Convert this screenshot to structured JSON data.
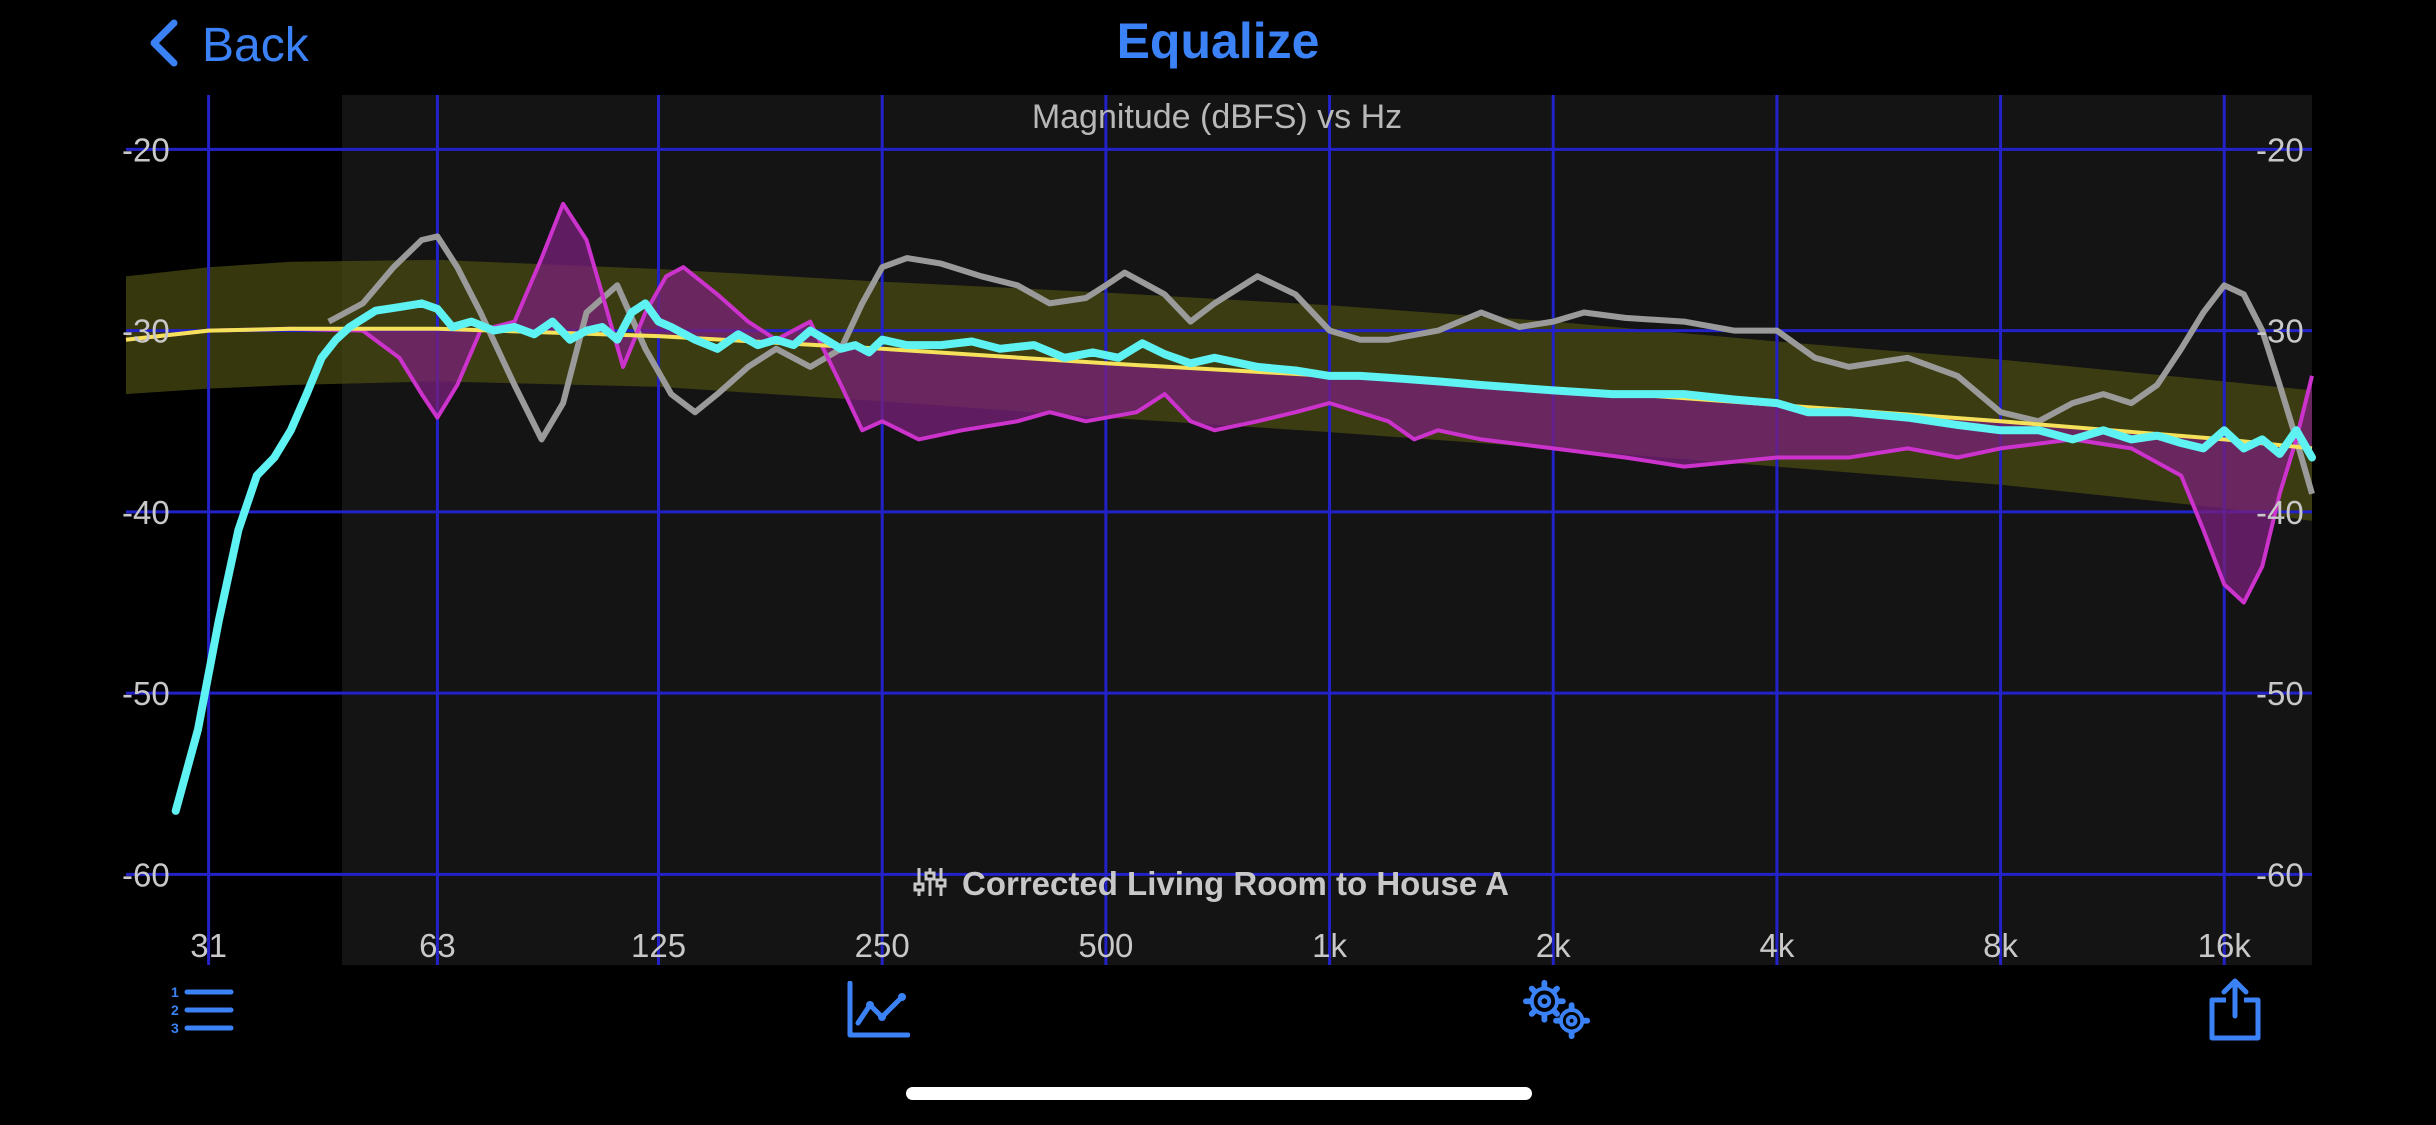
{
  "nav": {
    "back_label": "Back",
    "title": "Equalize"
  },
  "tabbar": {
    "items": [
      {
        "icon": "numbered-list-icon"
      },
      {
        "icon": "line-graph-icon"
      },
      {
        "icon": "gears-icon"
      },
      {
        "icon": "share-icon"
      }
    ],
    "accent": "#3b82f6"
  },
  "colors": {
    "accent": "#3b82f6",
    "grid": "#2222c8",
    "measured": "#9a9a9a",
    "eq": "#cc33cc",
    "predicted": "#5ef2f2",
    "target": "#f5e25a",
    "target_band": "#4a4a12"
  },
  "chart_data": {
    "type": "line",
    "title": "Magnitude (dBFS) vs Hz",
    "subtitle": "Corrected Living Room to House A",
    "x_scale": "log",
    "xlim": [
      24,
      21000
    ],
    "ylim": [
      -65,
      -17
    ],
    "x_ticks": [
      {
        "value": 31,
        "label": "31"
      },
      {
        "value": 63,
        "label": "63"
      },
      {
        "value": 125,
        "label": "125"
      },
      {
        "value": 250,
        "label": "250"
      },
      {
        "value": 500,
        "label": "500"
      },
      {
        "value": 1000,
        "label": "1k"
      },
      {
        "value": 2000,
        "label": "2k"
      },
      {
        "value": 4000,
        "label": "4k"
      },
      {
        "value": 8000,
        "label": "8k"
      },
      {
        "value": 16000,
        "label": "16k"
      }
    ],
    "y_ticks": [
      {
        "value": -20,
        "label": "-20"
      },
      {
        "value": -30,
        "label": "-30"
      },
      {
        "value": -40,
        "label": "-40"
      },
      {
        "value": -50,
        "label": "-50"
      },
      {
        "value": -60,
        "label": "-60"
      }
    ],
    "grid": true,
    "range_start_hz": 40,
    "target": {
      "x": [
        24,
        31,
        40,
        63,
        125,
        250,
        500,
        1000,
        2000,
        4000,
        8000,
        16000,
        21000
      ],
      "y": [
        -30.5,
        -30.0,
        -29.9,
        -29.9,
        -30.3,
        -31.0,
        -31.8,
        -32.5,
        -33.2,
        -34.1,
        -35.0,
        -36.0,
        -36.5
      ],
      "upper": [
        -27.0,
        -26.5,
        -26.2,
        -26.1,
        -26.6,
        -27.3,
        -27.9,
        -28.6,
        -29.5,
        -30.6,
        -31.6,
        -32.8,
        -33.3
      ],
      "lower": [
        -33.5,
        -33.2,
        -33.0,
        -32.8,
        -33.1,
        -33.9,
        -34.8,
        -35.6,
        -36.5,
        -37.5,
        -38.5,
        -39.8,
        -40.5
      ]
    },
    "series": [
      {
        "key": "measured",
        "x": [
          45,
          50,
          55,
          60,
          63,
          67,
          72,
          80,
          87,
          93,
          100,
          110,
          120,
          130,
          140,
          150,
          165,
          180,
          200,
          220,
          235,
          250,
          270,
          300,
          340,
          380,
          420,
          470,
          500,
          530,
          600,
          650,
          700,
          800,
          900,
          1000,
          1100,
          1200,
          1400,
          1600,
          1800,
          2000,
          2200,
          2500,
          3000,
          3500,
          4000,
          4500,
          5000,
          6000,
          7000,
          8000,
          9000,
          10000,
          11000,
          12000,
          13000,
          14000,
          15000,
          16000,
          17000,
          18000,
          19000,
          20000,
          21000
        ],
        "y": [
          -29.5,
          -28.5,
          -26.5,
          -25.0,
          -24.8,
          -26.5,
          -29.0,
          -33.0,
          -36.0,
          -34.0,
          -29.0,
          -27.5,
          -31.0,
          -33.5,
          -34.5,
          -33.5,
          -32.0,
          -31.0,
          -32.0,
          -31.0,
          -28.5,
          -26.5,
          -26.0,
          -26.3,
          -27.0,
          -27.5,
          -28.5,
          -28.2,
          -27.5,
          -26.8,
          -28.0,
          -29.5,
          -28.5,
          -27.0,
          -28.0,
          -30.0,
          -30.5,
          -30.5,
          -30.0,
          -29.0,
          -29.8,
          -29.5,
          -29.0,
          -29.3,
          -29.5,
          -30.0,
          -30.0,
          -31.5,
          -32.0,
          -31.5,
          -32.5,
          -34.5,
          -35.0,
          -34.0,
          -33.5,
          -34.0,
          -33.0,
          -31.0,
          -29.0,
          -27.5,
          -28.0,
          -30.0,
          -33.0,
          -36.0,
          -39.0
        ]
      },
      {
        "key": "eq",
        "x": [
          24,
          31,
          40,
          50,
          56,
          60,
          63,
          67,
          72,
          80,
          87,
          93,
          100,
          105,
          112,
          120,
          128,
          135,
          150,
          165,
          180,
          200,
          220,
          235,
          250,
          280,
          320,
          380,
          420,
          470,
          550,
          600,
          650,
          700,
          800,
          900,
          1000,
          1200,
          1300,
          1400,
          1600,
          2000,
          2500,
          3000,
          4000,
          5000,
          6000,
          7000,
          8000,
          10000,
          12000,
          14000,
          15000,
          16000,
          17000,
          18000,
          19000,
          20000,
          21000
        ],
        "y": [
          -30.5,
          -30.0,
          -29.9,
          -30.0,
          -31.5,
          -33.5,
          -34.8,
          -33.0,
          -30.0,
          -29.5,
          -26.0,
          -23.0,
          -25.0,
          -28.0,
          -32.0,
          -29.0,
          -27.0,
          -26.5,
          -28.0,
          -29.5,
          -30.5,
          -29.5,
          -33.0,
          -35.5,
          -35.0,
          -36.0,
          -35.5,
          -35.0,
          -34.5,
          -35.0,
          -34.5,
          -33.5,
          -35.0,
          -35.5,
          -35.0,
          -34.5,
          -34.0,
          -35.0,
          -36.0,
          -35.5,
          -36.0,
          -36.5,
          -37.0,
          -37.5,
          -37.0,
          -37.0,
          -36.5,
          -37.0,
          -36.5,
          -36.0,
          -36.5,
          -38.0,
          -41.0,
          -44.0,
          -45.0,
          -43.0,
          -39.0,
          -36.0,
          -32.5
        ]
      },
      {
        "key": "predicted",
        "x": [
          28,
          30,
          32,
          34,
          36,
          38,
          40,
          42,
          44,
          46,
          48,
          52,
          56,
          60,
          63,
          66,
          70,
          75,
          80,
          85,
          90,
          95,
          100,
          105,
          110,
          115,
          120,
          125,
          130,
          140,
          150,
          160,
          170,
          180,
          190,
          200,
          210,
          220,
          230,
          240,
          250,
          270,
          300,
          330,
          360,
          400,
          440,
          480,
          520,
          560,
          600,
          650,
          700,
          800,
          900,
          1000,
          1100,
          1200,
          1400,
          1600,
          2000,
          2400,
          3000,
          3500,
          4000,
          4400,
          5000,
          6000,
          7000,
          8000,
          9000,
          10000,
          11000,
          12000,
          13000,
          14000,
          15000,
          16000,
          17000,
          18000,
          19000,
          20000,
          21000
        ],
        "y": [
          -56.5,
          -52.0,
          -46.0,
          -41.0,
          -38.0,
          -37.0,
          -35.5,
          -33.5,
          -31.5,
          -30.5,
          -29.8,
          -28.9,
          -28.7,
          -28.5,
          -28.8,
          -29.8,
          -29.5,
          -30.0,
          -29.8,
          -30.2,
          -29.5,
          -30.5,
          -30.0,
          -29.8,
          -30.5,
          -29.0,
          -28.5,
          -29.5,
          -29.8,
          -30.5,
          -31.0,
          -30.2,
          -30.8,
          -30.5,
          -30.8,
          -30.0,
          -30.5,
          -31.0,
          -30.8,
          -31.2,
          -30.5,
          -30.8,
          -30.8,
          -30.6,
          -31.0,
          -30.8,
          -31.5,
          -31.2,
          -31.5,
          -30.7,
          -31.3,
          -31.8,
          -31.5,
          -32.0,
          -32.2,
          -32.5,
          -32.5,
          -32.6,
          -32.8,
          -33.0,
          -33.3,
          -33.5,
          -33.5,
          -33.8,
          -34.0,
          -34.5,
          -34.5,
          -34.8,
          -35.2,
          -35.5,
          -35.5,
          -36.0,
          -35.5,
          -36.0,
          -35.8,
          -36.2,
          -36.5,
          -35.5,
          -36.5,
          -36.0,
          -36.8,
          -35.5,
          -37.0
        ]
      }
    ]
  }
}
